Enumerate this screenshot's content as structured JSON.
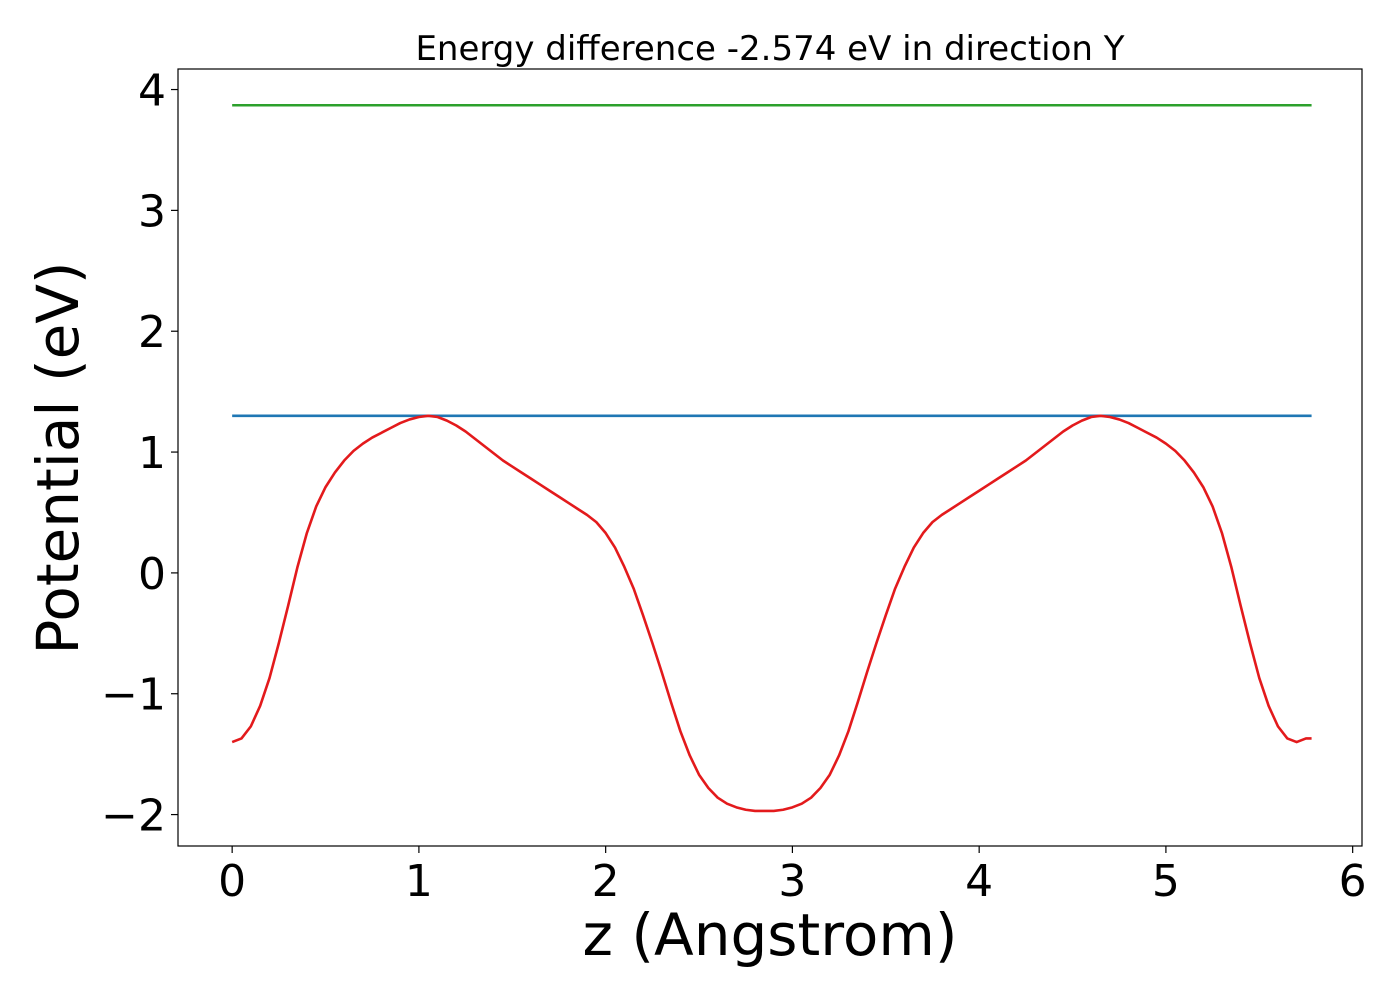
{
  "chart_data": {
    "type": "line",
    "title": "Energy difference -2.574 eV in direction Y",
    "xlabel": "z (Angstrom)",
    "ylabel": "Potential (eV)",
    "xlim": [
      -0.29,
      6.05
    ],
    "ylim": [
      -2.26,
      4.17
    ],
    "xticks": [
      0,
      1,
      2,
      3,
      4,
      5,
      6
    ],
    "yticks": [
      -2,
      -1,
      0,
      1,
      2,
      3,
      4
    ],
    "xtick_labels": [
      "0",
      "1",
      "2",
      "3",
      "4",
      "5",
      "6"
    ],
    "ytick_labels": [
      "−2",
      "−1",
      "0",
      "1",
      "2",
      "3",
      "4"
    ],
    "grid": false,
    "series": [
      {
        "color": "#2ca02c",
        "x": [
          0.0,
          5.78
        ],
        "y": [
          3.87,
          3.87
        ]
      },
      {
        "color": "#1f77b4",
        "x": [
          0.0,
          5.78
        ],
        "y": [
          1.3,
          1.3
        ]
      },
      {
        "color": "#e31a1c",
        "x": [
          0.0,
          0.05,
          0.1,
          0.15,
          0.2,
          0.25,
          0.3,
          0.35,
          0.4,
          0.45,
          0.5,
          0.55,
          0.6,
          0.65,
          0.7,
          0.75,
          0.8,
          0.85,
          0.9,
          0.95,
          1.0,
          1.05,
          1.1,
          1.15,
          1.2,
          1.25,
          1.3,
          1.35,
          1.4,
          1.45,
          1.5,
          1.55,
          1.6,
          1.65,
          1.7,
          1.75,
          1.8,
          1.85,
          1.9,
          1.95,
          2.0,
          2.05,
          2.1,
          2.15,
          2.2,
          2.25,
          2.3,
          2.35,
          2.4,
          2.45,
          2.5,
          2.55,
          2.6,
          2.65,
          2.7,
          2.75,
          2.8,
          2.85,
          2.9,
          2.95,
          3.0,
          3.05,
          3.1,
          3.15,
          3.2,
          3.25,
          3.3,
          3.35,
          3.4,
          3.45,
          3.5,
          3.55,
          3.6,
          3.65,
          3.7,
          3.75,
          3.8,
          3.85,
          3.9,
          3.95,
          4.0,
          4.05,
          4.1,
          4.15,
          4.2,
          4.25,
          4.3,
          4.35,
          4.4,
          4.45,
          4.5,
          4.55,
          4.6,
          4.65,
          4.7,
          4.75,
          4.8,
          4.85,
          4.9,
          4.95,
          5.0,
          5.05,
          5.1,
          5.15,
          5.2,
          5.25,
          5.3,
          5.35,
          5.4,
          5.45,
          5.5,
          5.55,
          5.6,
          5.65,
          5.7,
          5.75,
          5.78
        ],
        "y": [
          -1.4,
          -1.37,
          -1.27,
          -1.1,
          -0.87,
          -0.58,
          -0.27,
          0.05,
          0.33,
          0.55,
          0.71,
          0.83,
          0.93,
          1.01,
          1.07,
          1.12,
          1.16,
          1.2,
          1.24,
          1.27,
          1.29,
          1.3,
          1.29,
          1.26,
          1.22,
          1.17,
          1.11,
          1.05,
          0.99,
          0.93,
          0.88,
          0.83,
          0.78,
          0.73,
          0.68,
          0.63,
          0.58,
          0.53,
          0.48,
          0.42,
          0.33,
          0.21,
          0.05,
          -0.13,
          -0.35,
          -0.58,
          -0.82,
          -1.07,
          -1.31,
          -1.51,
          -1.67,
          -1.78,
          -1.86,
          -1.91,
          -1.94,
          -1.96,
          -1.97,
          -1.97,
          -1.97,
          -1.96,
          -1.94,
          -1.91,
          -1.86,
          -1.78,
          -1.67,
          -1.51,
          -1.31,
          -1.07,
          -0.82,
          -0.58,
          -0.35,
          -0.13,
          0.05,
          0.21,
          0.33,
          0.42,
          0.48,
          0.53,
          0.58,
          0.63,
          0.68,
          0.73,
          0.78,
          0.83,
          0.88,
          0.93,
          0.99,
          1.05,
          1.11,
          1.17,
          1.22,
          1.26,
          1.29,
          1.3,
          1.29,
          1.27,
          1.24,
          1.2,
          1.16,
          1.12,
          1.07,
          1.01,
          0.93,
          0.83,
          0.71,
          0.55,
          0.33,
          0.05,
          -0.27,
          -0.58,
          -0.87,
          -1.1,
          -1.27,
          -1.37,
          -1.4,
          -1.37,
          -1.37
        ]
      }
    ]
  }
}
